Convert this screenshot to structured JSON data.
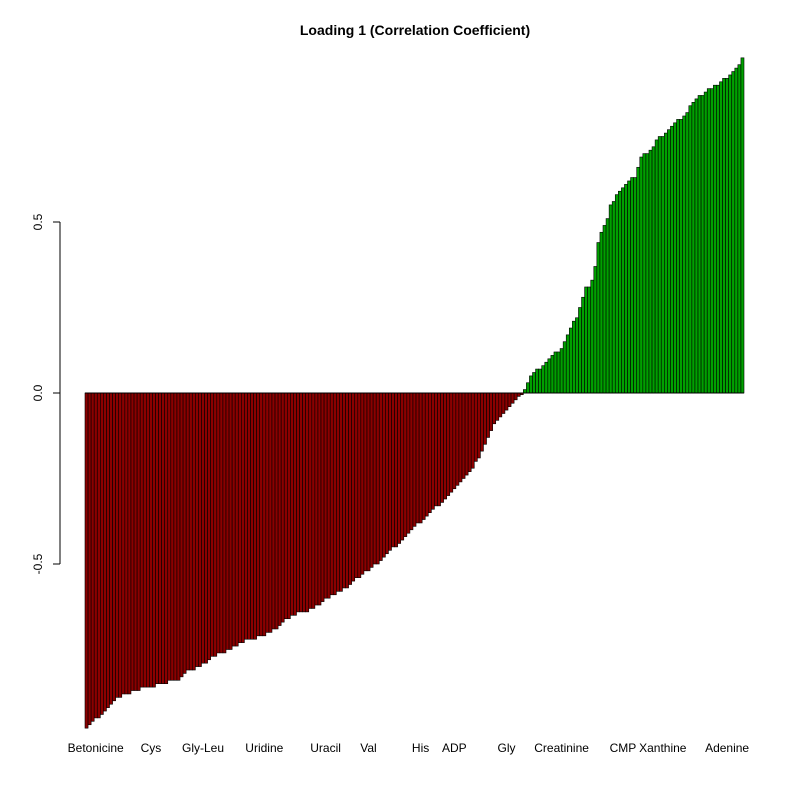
{
  "chart_data": {
    "type": "bar",
    "title": "Loading 1 (Correlation Coefficient)",
    "xlabel": "",
    "ylabel": "",
    "ylim": [
      -0.985,
      0.985
    ],
    "y_ticks": [
      {
        "value": 0.5,
        "label": "0.5"
      },
      {
        "value": 0.0,
        "label": "0.0"
      },
      {
        "value": -0.5,
        "label": "-0.5"
      }
    ],
    "x_labels": [
      {
        "index": 3,
        "label": "Betonicine"
      },
      {
        "index": 21,
        "label": "Cys"
      },
      {
        "index": 38,
        "label": "Gly-Leu"
      },
      {
        "index": 58,
        "label": "Uridine"
      },
      {
        "index": 78,
        "label": "Uracil"
      },
      {
        "index": 92,
        "label": "Val"
      },
      {
        "index": 109,
        "label": "His"
      },
      {
        "index": 120,
        "label": "ADP"
      },
      {
        "index": 137,
        "label": "Gly"
      },
      {
        "index": 155,
        "label": "Creatinine"
      },
      {
        "index": 175,
        "label": "CMP"
      },
      {
        "index": 188,
        "label": "Xanthine"
      },
      {
        "index": 209,
        "label": "Adenine"
      }
    ],
    "neg_color": "#8b0000",
    "pos_color": "#00a000",
    "values": [
      -0.98,
      -0.97,
      -0.96,
      -0.95,
      -0.95,
      -0.94,
      -0.93,
      -0.92,
      -0.91,
      -0.9,
      -0.89,
      -0.89,
      -0.88,
      -0.88,
      -0.88,
      -0.87,
      -0.87,
      -0.87,
      -0.86,
      -0.86,
      -0.86,
      -0.86,
      -0.86,
      -0.85,
      -0.85,
      -0.85,
      -0.85,
      -0.84,
      -0.84,
      -0.84,
      -0.84,
      -0.83,
      -0.82,
      -0.81,
      -0.81,
      -0.81,
      -0.8,
      -0.8,
      -0.79,
      -0.79,
      -0.78,
      -0.77,
      -0.77,
      -0.76,
      -0.76,
      -0.76,
      -0.75,
      -0.75,
      -0.74,
      -0.74,
      -0.73,
      -0.73,
      -0.72,
      -0.72,
      -0.72,
      -0.72,
      -0.71,
      -0.71,
      -0.71,
      -0.7,
      -0.7,
      -0.69,
      -0.69,
      -0.68,
      -0.67,
      -0.66,
      -0.66,
      -0.65,
      -0.65,
      -0.64,
      -0.64,
      -0.64,
      -0.64,
      -0.63,
      -0.63,
      -0.62,
      -0.62,
      -0.61,
      -0.6,
      -0.6,
      -0.59,
      -0.59,
      -0.58,
      -0.58,
      -0.57,
      -0.57,
      -0.56,
      -0.55,
      -0.54,
      -0.54,
      -0.53,
      -0.52,
      -0.52,
      -0.51,
      -0.5,
      -0.5,
      -0.49,
      -0.48,
      -0.47,
      -0.46,
      -0.45,
      -0.45,
      -0.44,
      -0.43,
      -0.42,
      -0.41,
      -0.4,
      -0.39,
      -0.38,
      -0.38,
      -0.37,
      -0.36,
      -0.35,
      -0.34,
      -0.33,
      -0.33,
      -0.32,
      -0.31,
      -0.3,
      -0.29,
      -0.28,
      -0.27,
      -0.26,
      -0.25,
      -0.24,
      -0.23,
      -0.22,
      -0.2,
      -0.19,
      -0.17,
      -0.15,
      -0.13,
      -0.11,
      -0.09,
      -0.08,
      -0.07,
      -0.06,
      -0.05,
      -0.04,
      -0.03,
      -0.02,
      -0.01,
      -0.005,
      0.01,
      0.03,
      0.05,
      0.06,
      0.07,
      0.07,
      0.08,
      0.09,
      0.1,
      0.11,
      0.12,
      0.12,
      0.13,
      0.15,
      0.17,
      0.19,
      0.21,
      0.22,
      0.25,
      0.28,
      0.31,
      0.31,
      0.33,
      0.37,
      0.44,
      0.47,
      0.49,
      0.51,
      0.55,
      0.56,
      0.58,
      0.59,
      0.6,
      0.61,
      0.62,
      0.63,
      0.63,
      0.66,
      0.69,
      0.7,
      0.7,
      0.71,
      0.72,
      0.74,
      0.75,
      0.75,
      0.76,
      0.77,
      0.78,
      0.79,
      0.8,
      0.8,
      0.81,
      0.82,
      0.84,
      0.85,
      0.86,
      0.87,
      0.87,
      0.88,
      0.89,
      0.89,
      0.9,
      0.9,
      0.91,
      0.92,
      0.92,
      0.93,
      0.94,
      0.95,
      0.96,
      0.98
    ]
  }
}
